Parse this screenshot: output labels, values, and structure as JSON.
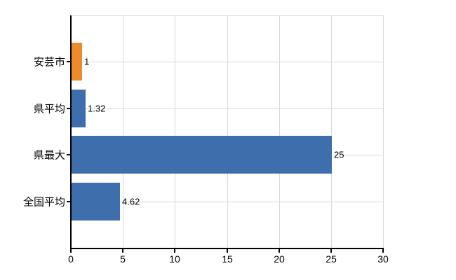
{
  "chart_data": {
    "type": "bar",
    "orientation": "horizontal",
    "title": "",
    "xlabel": "",
    "ylabel": "",
    "categories": [
      "安芸市",
      "県平均",
      "県最大",
      "全国平均"
    ],
    "values": [
      1,
      1.32,
      25,
      4.62
    ],
    "value_labels": [
      "1",
      "1.32",
      "25",
      "4.62"
    ],
    "bar_colors": [
      "#EC8B2D",
      "#3E6FAC",
      "#3E6FAC",
      "#3E6FAC"
    ],
    "xlim": [
      0,
      30
    ],
    "xticks": [
      0,
      5,
      10,
      15,
      20,
      25,
      30
    ],
    "grid": true,
    "legend": false,
    "colors": {
      "highlight_bar": "#EC8B2D",
      "default_bar": "#3E6FAC",
      "gridline": "#D9D9D9",
      "axis": "#000000",
      "text": "#000000",
      "background": "#FFFFFF"
    }
  }
}
